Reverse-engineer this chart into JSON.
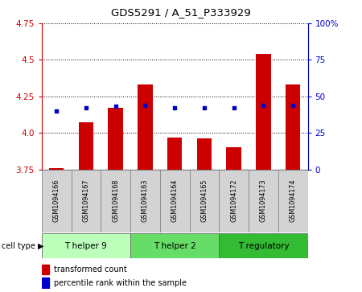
{
  "title": "GDS5291 / A_51_P333929",
  "samples": [
    "GSM1094166",
    "GSM1094167",
    "GSM1094168",
    "GSM1094163",
    "GSM1094164",
    "GSM1094165",
    "GSM1094172",
    "GSM1094173",
    "GSM1094174"
  ],
  "transformed_count": [
    3.76,
    4.07,
    4.17,
    4.33,
    3.97,
    3.96,
    3.9,
    4.54,
    4.33
  ],
  "percentile_rank": [
    40,
    42,
    43,
    44,
    42,
    42,
    42,
    44,
    44
  ],
  "y_min": 3.75,
  "y_max": 4.75,
  "y_ticks": [
    3.75,
    4.0,
    4.25,
    4.5,
    4.75
  ],
  "y2_ticks": [
    0,
    25,
    50,
    75,
    100
  ],
  "y2_labels": [
    "0",
    "25",
    "50",
    "75",
    "100%"
  ],
  "bar_color": "#cc0000",
  "dot_color": "#0000cc",
  "cell_types": [
    {
      "label": "T helper 9",
      "start": 0,
      "end": 3,
      "color": "#bbffbb"
    },
    {
      "label": "T helper 2",
      "start": 3,
      "end": 6,
      "color": "#66dd66"
    },
    {
      "label": "T regulatory",
      "start": 6,
      "end": 9,
      "color": "#33bb33"
    }
  ],
  "legend_bar_label": "transformed count",
  "legend_dot_label": "percentile rank within the sample",
  "left_axis_color": "#cc0000",
  "right_axis_color": "#0000cc",
  "bar_width": 0.5,
  "cell_type_label": "cell type"
}
